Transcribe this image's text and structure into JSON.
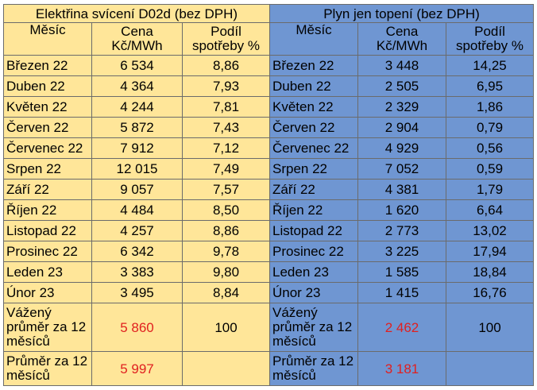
{
  "left": {
    "title": "Elektřina svícení D02d (bez DPH)",
    "headers": {
      "month": "Měsíc",
      "price": "Cena Kč/MWh",
      "share": "Podíl spotřeby %"
    },
    "rows": [
      {
        "month": "Březen 22",
        "price": "6 534",
        "share": "8,86"
      },
      {
        "month": "Duben 22",
        "price": "4 364",
        "share": "7,93"
      },
      {
        "month": "Květen 22",
        "price": "4 244",
        "share": "7,81"
      },
      {
        "month": "Červen 22",
        "price": "5 872",
        "share": "7,43"
      },
      {
        "month": "Červenec 22",
        "price": "7 912",
        "share": "7,12"
      },
      {
        "month": "Srpen 22",
        "price": "12 015",
        "share": "7,49"
      },
      {
        "month": "Září 22",
        "price": "9 057",
        "share": "7,57"
      },
      {
        "month": "Říjen 22",
        "price": "4 484",
        "share": "8,50"
      },
      {
        "month": "Listopad 22",
        "price": "4 257",
        "share": "8,86"
      },
      {
        "month": "Prosinec 22",
        "price": "6 342",
        "share": "9,78"
      },
      {
        "month": "Leden 23",
        "price": "3 383",
        "share": "9,80"
      },
      {
        "month": "Únor 23",
        "price": "3 495",
        "share": "8,84"
      }
    ],
    "weighted": {
      "label": "Vážený průměr za 12 měsíců",
      "price": "5 860",
      "share": "100"
    },
    "average": {
      "label": "Průměr za 12 měsíců",
      "price": "5 997",
      "share": ""
    }
  },
  "right": {
    "title": "Plyn jen topení (bez DPH)",
    "headers": {
      "month": "Měsíc",
      "price": "Cena Kč/MWh",
      "share": "Podíl spotřeby %"
    },
    "rows": [
      {
        "month": "Březen 22",
        "price": "3 448",
        "share": "14,25"
      },
      {
        "month": "Duben 22",
        "price": "2 505",
        "share": "6,95"
      },
      {
        "month": "Květen 22",
        "price": "2 329",
        "share": "1,86"
      },
      {
        "month": "Červen 22",
        "price": "2 904",
        "share": "0,79"
      },
      {
        "month": "Červenec 22",
        "price": "4 929",
        "share": "0,56"
      },
      {
        "month": "Srpen 22",
        "price": "7 052",
        "share": "0,59"
      },
      {
        "month": "Září 22",
        "price": "4 381",
        "share": "1,79"
      },
      {
        "month": "Říjen 22",
        "price": "1 620",
        "share": "6,64"
      },
      {
        "month": "Listopad 22",
        "price": "2 773",
        "share": "13,02"
      },
      {
        "month": "Prosinec 22",
        "price": "3 225",
        "share": "17,94"
      },
      {
        "month": "Leden 23",
        "price": "1 585",
        "share": "18,84"
      },
      {
        "month": "Únor 23",
        "price": "1 415",
        "share": "16,76"
      }
    ],
    "weighted": {
      "label": "Vážený průměr za 12 měsíců",
      "price": "2 462",
      "share": "100"
    },
    "average": {
      "label": "Průměr za 12 měsíců",
      "price": "3 181",
      "share": ""
    }
  },
  "colors": {
    "left_bg": "#ffe699",
    "right_bg": "#6f96d2",
    "highlight": "#e02020"
  }
}
